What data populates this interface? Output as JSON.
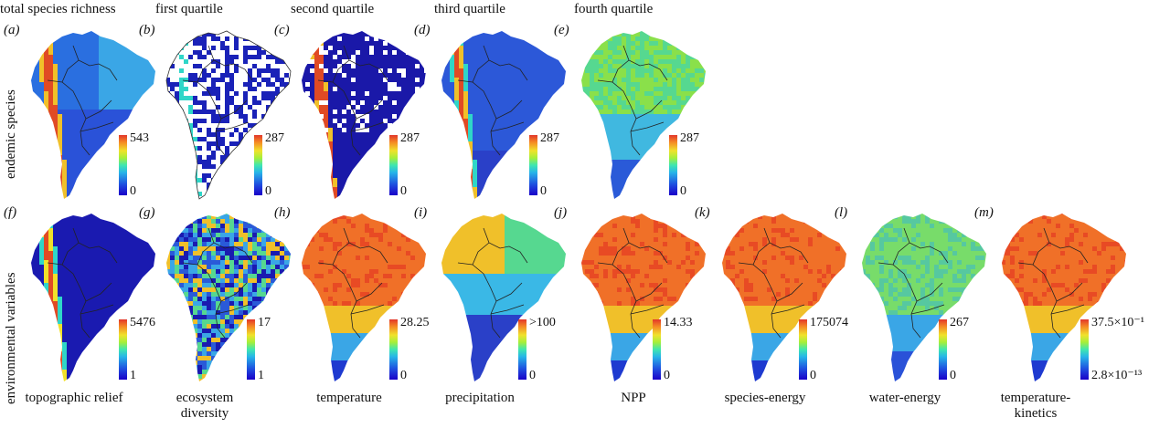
{
  "column_titles": [
    "total species richness",
    "first quartile",
    "second quartile",
    "third quartile",
    "fourth quartile"
  ],
  "row_labels": {
    "top": "endemic species",
    "bottom": "environmental variables"
  },
  "panels": [
    {
      "letter": "(a)",
      "max": "543",
      "min": "0",
      "style": "richness"
    },
    {
      "letter": "(b)",
      "max": "287",
      "min": "0",
      "style": "sparse"
    },
    {
      "letter": "(c)",
      "max": "287",
      "min": "0",
      "style": "low"
    },
    {
      "letter": "(d)",
      "max": "287",
      "min": "0",
      "style": "andes"
    },
    {
      "letter": "(e)",
      "max": "287",
      "min": "0",
      "style": "warm"
    },
    {
      "letter": "(f)",
      "max": "5476",
      "min": "1",
      "style": "relief",
      "label": "topographic relief"
    },
    {
      "letter": "(g)",
      "max": "17",
      "min": "1",
      "style": "noise",
      "label": "ecosystem diversity"
    },
    {
      "letter": "(h)",
      "max": "28.25",
      "min": "0",
      "style": "hot",
      "label": "temperature"
    },
    {
      "letter": "(i)",
      "max": ">100",
      "min": "0",
      "style": "precip",
      "label": "precipitation"
    },
    {
      "letter": "(j)",
      "max": "14.33",
      "min": "0",
      "style": "hot",
      "label": "NPP"
    },
    {
      "letter": "(k)",
      "max": "175074",
      "min": "0",
      "style": "hot",
      "label": "species-energy"
    },
    {
      "letter": "(l)",
      "max": "267",
      "min": "0",
      "style": "water",
      "label": "water-energy"
    },
    {
      "letter": "(m)",
      "max": "37.5×10⁻¹",
      "min": "2.8×10⁻¹³",
      "style": "hot",
      "label": "temperature-\nkinetics"
    }
  ]
}
